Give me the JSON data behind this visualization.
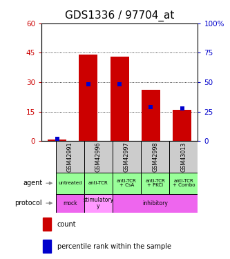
{
  "title": "GDS1336 / 97704_at",
  "samples": [
    "GSM42991",
    "GSM42996",
    "GSM42997",
    "GSM42998",
    "GSM43013"
  ],
  "counts": [
    1,
    44,
    43,
    26,
    16
  ],
  "percentile_ranks": [
    2,
    48,
    48,
    29,
    28
  ],
  "left_yticks": [
    0,
    15,
    30,
    45,
    60
  ],
  "right_yticks": [
    0,
    25,
    50,
    75,
    100
  ],
  "left_ylim": [
    0,
    60
  ],
  "right_ylim": [
    0,
    100
  ],
  "bar_color": "#cc0000",
  "dot_color": "#0000cc",
  "agent_labels": [
    "untreated",
    "anti-TCR",
    "anti-TCR\n+ CsA",
    "anti-TCR\n+ PKCi",
    "anti-TCR\n+ Combo"
  ],
  "agent_bg_color": "#99ff99",
  "sample_bg_color": "#cccccc",
  "protocol_data": [
    {
      "label": "mock",
      "start": 0,
      "end": 1,
      "color": "#ee66ee"
    },
    {
      "label": "stimulatory\ny",
      "start": 1,
      "end": 2,
      "color": "#ff99ff"
    },
    {
      "label": "inhibitory",
      "start": 2,
      "end": 5,
      "color": "#ee66ee"
    }
  ],
  "legend_count_color": "#cc0000",
  "legend_dot_color": "#0000cc",
  "title_fontsize": 11,
  "left_tick_color": "#cc0000",
  "right_tick_color": "#0000cc"
}
